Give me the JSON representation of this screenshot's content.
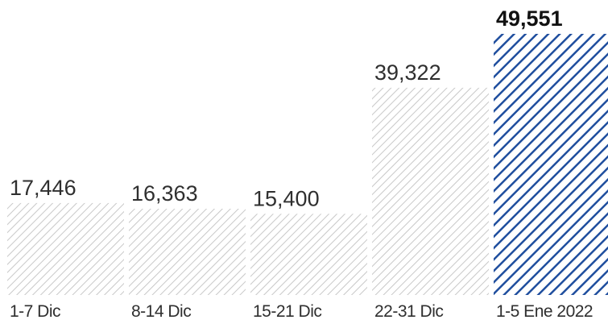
{
  "chart_data": {
    "type": "bar",
    "title": "",
    "xlabel": "",
    "ylabel": "",
    "categories": [
      "1-7 Dic",
      "8-14 Dic",
      "15-21 Dic",
      "22-31 Dic",
      "1-5 Ene 2022"
    ],
    "values": [
      17446,
      16363,
      15400,
      39322,
      49551
    ],
    "value_labels": [
      "17,446",
      "16,363",
      "15,400",
      "39,322",
      "49,551"
    ],
    "ylim": [
      0,
      49551
    ],
    "grid": false,
    "legend": "none",
    "highlight_index": 4,
    "colors": {
      "base_hatch": "#c8c8c8",
      "highlight_hatch": "#1f4e9e",
      "text": "#2f2f2f"
    }
  }
}
